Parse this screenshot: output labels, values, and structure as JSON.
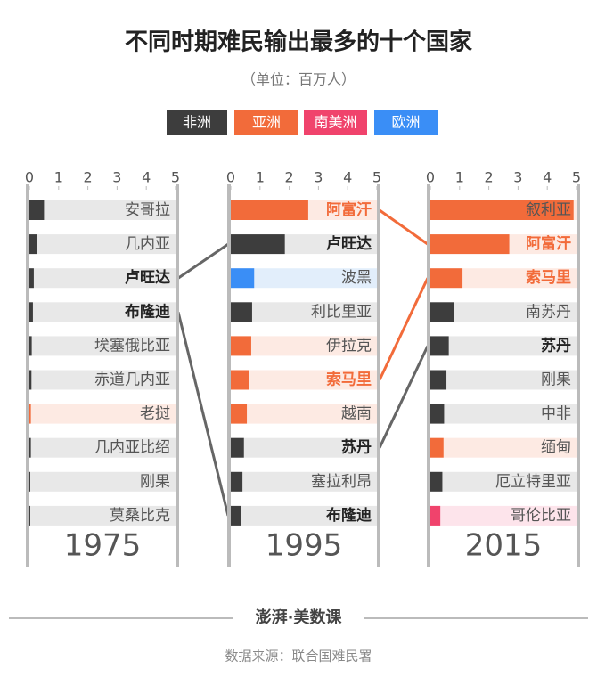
{
  "chart_data": {
    "type": "bar",
    "title": "不同时期难民输出最多的十个国家",
    "subtitle": "（单位：百万人）",
    "legend": [
      {
        "name": "非洲",
        "color": "#3d3d3d"
      },
      {
        "name": "亚洲",
        "color": "#f26b3a"
      },
      {
        "name": "南美洲",
        "color": "#f0436c"
      },
      {
        "name": "欧洲",
        "color": "#3a8ef6"
      }
    ],
    "panels": [
      {
        "year": "1975",
        "xlim": [
          0,
          5
        ],
        "xticks": [
          0,
          1,
          2,
          3,
          4,
          5
        ],
        "categories": [
          "安哥拉",
          "几内亚",
          "卢旺达",
          "布隆迪",
          "埃塞俄比亚",
          "赤道几内亚",
          "老挝",
          "几内亚比绍",
          "刚果",
          "莫桑比克"
        ],
        "values": [
          0.5,
          0.27,
          0.15,
          0.12,
          0.08,
          0.07,
          0.05,
          0.05,
          0.03,
          0.03
        ],
        "colors": [
          "#3d3d3d",
          "#3d3d3d",
          "#3d3d3d",
          "#3d3d3d",
          "#3d3d3d",
          "#3d3d3d",
          "#f26b3a",
          "#3d3d3d",
          "#3d3d3d",
          "#3d3d3d"
        ]
      },
      {
        "year": "1995",
        "xlim": [
          0,
          5
        ],
        "xticks": [
          0,
          1,
          2,
          3,
          4,
          5
        ],
        "categories": [
          "阿富汗",
          "卢旺达",
          "波黑",
          "利比里亚",
          "伊拉克",
          "索马里",
          "越南",
          "苏丹",
          "塞拉利昂",
          "布隆迪"
        ],
        "values": [
          2.65,
          1.85,
          0.8,
          0.73,
          0.7,
          0.64,
          0.55,
          0.45,
          0.4,
          0.35
        ],
        "colors": [
          "#f26b3a",
          "#3d3d3d",
          "#3a8ef6",
          "#3d3d3d",
          "#f26b3a",
          "#f26b3a",
          "#f26b3a",
          "#3d3d3d",
          "#3d3d3d",
          "#3d3d3d"
        ]
      },
      {
        "year": "2015",
        "xlim": [
          0,
          5
        ],
        "xticks": [
          0,
          1,
          2,
          3,
          4,
          5
        ],
        "categories": [
          "叙利亚",
          "阿富汗",
          "索马里",
          "南苏丹",
          "苏丹",
          "刚果",
          "中非",
          "缅甸",
          "厄立特里亚",
          "哥伦比亚"
        ],
        "values": [
          4.9,
          2.7,
          1.1,
          0.8,
          0.63,
          0.55,
          0.47,
          0.45,
          0.41,
          0.34
        ],
        "colors": [
          "#f26b3a",
          "#f26b3a",
          "#f26b3a",
          "#3d3d3d",
          "#3d3d3d",
          "#3d3d3d",
          "#3d3d3d",
          "#f26b3a",
          "#3d3d3d",
          "#f0436c"
        ]
      }
    ]
  },
  "footer": {
    "logo": "澎湃·美数课",
    "source": "数据来源：联合国难民署"
  }
}
